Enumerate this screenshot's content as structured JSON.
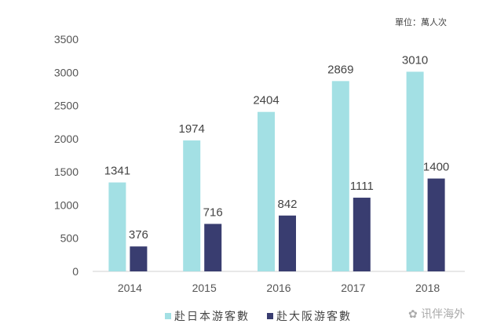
{
  "chart_data": {
    "type": "bar",
    "unit_note": "單位：萬人次",
    "categories": [
      "2014",
      "2015",
      "2016",
      "2017",
      "2018"
    ],
    "series": [
      {
        "name": "赴日本游客數",
        "values": [
          1341,
          1974,
          2404,
          2869,
          3010
        ],
        "color": "#a3e0e4"
      },
      {
        "name": "赴大阪游客數",
        "values": [
          376,
          716,
          842,
          1111,
          1400
        ],
        "color": "#393d70"
      }
    ],
    "ylim": [
      0,
      3500
    ],
    "yticks": [
      0,
      500,
      1000,
      1500,
      2000,
      2500,
      3000,
      3500
    ],
    "grid": false,
    "data_labels": true,
    "legend_position": "bottom"
  },
  "watermark": "讯伴海外"
}
